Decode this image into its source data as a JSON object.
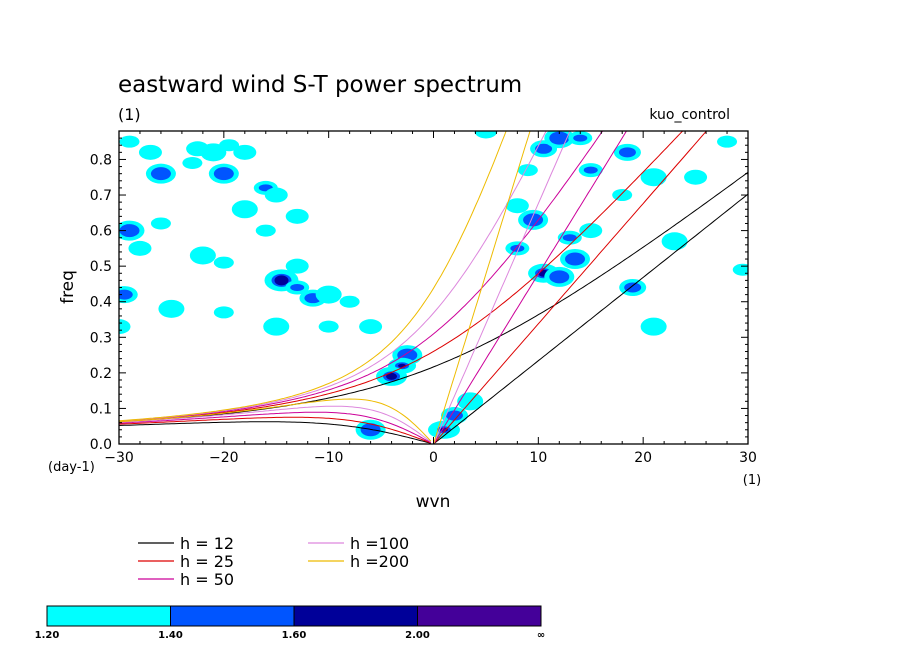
{
  "chart_data": {
    "type": "line",
    "title": "eastward wind S-T power spectrum",
    "units_label": "(1)",
    "case_label": "kuo_control",
    "xlabel": "wvn",
    "ylabel": "freq",
    "x_unit": "(1)",
    "y_unit": "(day-1)",
    "xlim": [
      -30,
      30
    ],
    "ylim": [
      0,
      0.88
    ],
    "xticks": [
      -30,
      -20,
      -10,
      0,
      10,
      20,
      30
    ],
    "xtick_labels": [
      "−30",
      "−20",
      "−10",
      "0",
      "10",
      "20",
      "30"
    ],
    "yticks": [
      0,
      0.1,
      0.2,
      0.3,
      0.4,
      0.5,
      0.6,
      0.7,
      0.8
    ],
    "ytick_labels": [
      "0.0",
      "0.1",
      "0.2",
      "0.3",
      "0.4",
      "0.5",
      "0.6",
      "0.7",
      "0.8"
    ],
    "series": [
      {
        "name": "h = 12",
        "h": 12,
        "color": "#000000"
      },
      {
        "name": "h = 25",
        "h": 25,
        "color": "#dd0000"
      },
      {
        "name": "h = 50",
        "h": 50,
        "color": "#cc0099"
      },
      {
        "name": "h =100",
        "h": 100,
        "color": "#dd88dd"
      },
      {
        "name": "h =200",
        "h": 200,
        "color": "#eebb00"
      }
    ],
    "contour_levels": [
      "1.20",
      "1.40",
      "1.60",
      "2.00",
      "∞"
    ],
    "contour_colors": [
      "#00ffff",
      "#0055ff",
      "#000099",
      "#440099"
    ],
    "contour_blobs": [
      {
        "k": -29,
        "f": 0.85,
        "lvl": 0
      },
      {
        "k": -27,
        "f": 0.82,
        "lvl": 0
      },
      {
        "k": -26,
        "f": 0.76,
        "lvl": 1
      },
      {
        "k": -23,
        "f": 0.79,
        "lvl": 0
      },
      {
        "k": -22.5,
        "f": 0.83,
        "lvl": 0
      },
      {
        "k": -21,
        "f": 0.82,
        "lvl": 0
      },
      {
        "k": -19.5,
        "f": 0.84,
        "lvl": 0
      },
      {
        "k": -18,
        "f": 0.82,
        "lvl": 0
      },
      {
        "k": -20,
        "f": 0.76,
        "lvl": 1
      },
      {
        "k": -16,
        "f": 0.72,
        "lvl": 1
      },
      {
        "k": -15,
        "f": 0.7,
        "lvl": 0
      },
      {
        "k": -18,
        "f": 0.66,
        "lvl": 0
      },
      {
        "k": -16,
        "f": 0.6,
        "lvl": 0
      },
      {
        "k": -13,
        "f": 0.64,
        "lvl": 0
      },
      {
        "k": -29,
        "f": 0.6,
        "lvl": 1
      },
      {
        "k": -26,
        "f": 0.62,
        "lvl": 0
      },
      {
        "k": -28,
        "f": 0.55,
        "lvl": 0
      },
      {
        "k": -22,
        "f": 0.53,
        "lvl": 0
      },
      {
        "k": -20,
        "f": 0.51,
        "lvl": 0
      },
      {
        "k": -13,
        "f": 0.5,
        "lvl": 0
      },
      {
        "k": -14.5,
        "f": 0.46,
        "lvl": 2
      },
      {
        "k": -13,
        "f": 0.44,
        "lvl": 1
      },
      {
        "k": -11.5,
        "f": 0.41,
        "lvl": 1
      },
      {
        "k": -10,
        "f": 0.42,
        "lvl": 0
      },
      {
        "k": -8,
        "f": 0.4,
        "lvl": 0
      },
      {
        "k": -29.5,
        "f": 0.42,
        "lvl": 1
      },
      {
        "k": -25,
        "f": 0.38,
        "lvl": 0
      },
      {
        "k": -20,
        "f": 0.37,
        "lvl": 0
      },
      {
        "k": -30,
        "f": 0.33,
        "lvl": 0
      },
      {
        "k": -15,
        "f": 0.33,
        "lvl": 0
      },
      {
        "k": -10,
        "f": 0.33,
        "lvl": 0
      },
      {
        "k": -6,
        "f": 0.33,
        "lvl": 0
      },
      {
        "k": -2.5,
        "f": 0.25,
        "lvl": 1
      },
      {
        "k": -3,
        "f": 0.22,
        "lvl": 2
      },
      {
        "k": -4,
        "f": 0.19,
        "lvl": 2
      },
      {
        "k": -6,
        "f": 0.04,
        "lvl": 1
      },
      {
        "k": 1,
        "f": 0.04,
        "lvl": 3
      },
      {
        "k": 2,
        "f": 0.08,
        "lvl": 1
      },
      {
        "k": 3.5,
        "f": 0.12,
        "lvl": 0
      },
      {
        "k": 9,
        "f": 0.77,
        "lvl": 0
      },
      {
        "k": 10.5,
        "f": 0.83,
        "lvl": 1
      },
      {
        "k": 12,
        "f": 0.86,
        "lvl": 1
      },
      {
        "k": 14,
        "f": 0.86,
        "lvl": 1
      },
      {
        "k": 8,
        "f": 0.67,
        "lvl": 0
      },
      {
        "k": 9.5,
        "f": 0.63,
        "lvl": 1
      },
      {
        "k": 8,
        "f": 0.55,
        "lvl": 1
      },
      {
        "k": 10.5,
        "f": 0.48,
        "lvl": 2
      },
      {
        "k": 12,
        "f": 0.47,
        "lvl": 1
      },
      {
        "k": 13,
        "f": 0.58,
        "lvl": 1
      },
      {
        "k": 15,
        "f": 0.6,
        "lvl": 0
      },
      {
        "k": 13.5,
        "f": 0.52,
        "lvl": 1
      },
      {
        "k": 18,
        "f": 0.7,
        "lvl": 0
      },
      {
        "k": 18.5,
        "f": 0.82,
        "lvl": 1
      },
      {
        "k": 21,
        "f": 0.75,
        "lvl": 0
      },
      {
        "k": 15,
        "f": 0.77,
        "lvl": 1
      },
      {
        "k": 19,
        "f": 0.44,
        "lvl": 1
      },
      {
        "k": 23,
        "f": 0.57,
        "lvl": 0
      },
      {
        "k": 28,
        "f": 0.85,
        "lvl": 0
      },
      {
        "k": 25,
        "f": 0.75,
        "lvl": 0
      },
      {
        "k": 21,
        "f": 0.33,
        "lvl": 0
      },
      {
        "k": 29.5,
        "f": 0.49,
        "lvl": 0
      },
      {
        "k": 5,
        "f": 0.88,
        "lvl": 0
      }
    ]
  }
}
